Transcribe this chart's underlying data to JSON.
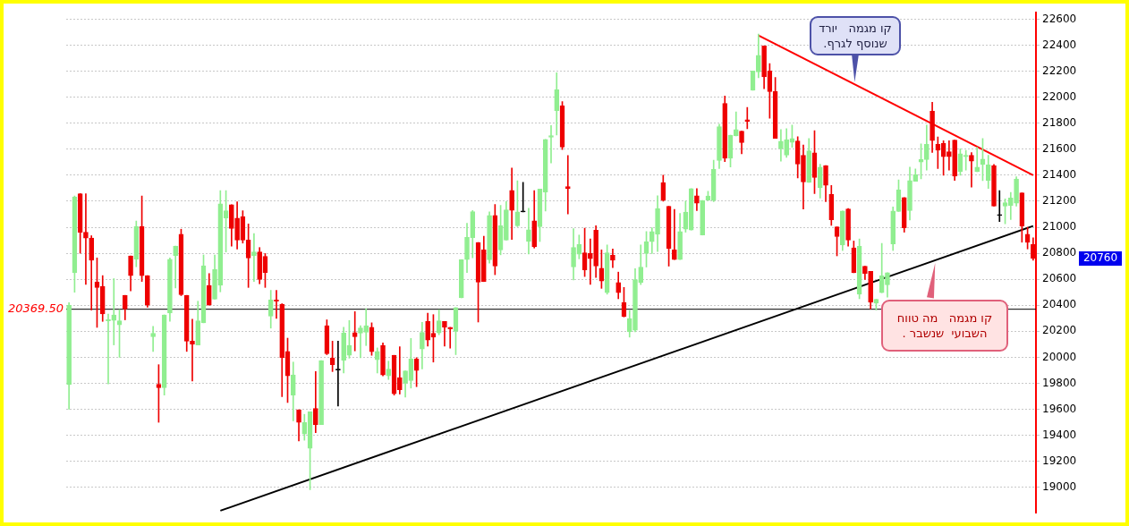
{
  "chart_data": {
    "type": "candlestick",
    "categories": [
      null,
      null,
      null,
      null,
      null,
      null,
      null,
      null,
      null,
      null,
      null,
      null,
      null,
      null,
      null,
      null,
      null,
      null,
      null,
      null,
      null,
      null,
      null,
      null,
      null,
      null,
      null,
      null,
      null,
      null,
      null,
      null,
      null,
      null,
      null,
      null,
      null,
      null,
      null,
      null,
      null,
      null,
      null,
      null,
      null,
      null,
      null,
      null,
      null,
      null,
      null,
      null,
      null,
      null,
      null,
      null,
      null,
      null,
      null,
      null,
      null,
      null,
      null,
      null,
      null,
      null,
      null,
      null,
      null,
      null,
      null,
      null,
      null,
      null,
      null,
      null,
      null,
      null,
      null,
      null,
      null,
      null,
      null,
      null,
      null,
      null,
      null,
      null,
      null,
      null,
      null,
      null,
      null,
      null,
      null,
      null,
      null,
      null,
      null,
      null,
      null,
      null,
      null,
      null,
      null,
      null,
      null,
      null,
      null,
      null,
      null,
      null,
      null,
      null,
      null,
      null,
      null,
      null,
      null,
      null,
      null,
      null,
      null,
      null,
      null,
      null,
      null,
      null,
      null,
      null,
      null,
      null,
      null,
      null,
      null,
      null,
      null,
      null,
      null,
      null,
      null,
      null,
      null,
      null,
      null,
      null,
      null,
      null,
      null,
      null,
      null,
      null,
      null,
      null,
      null,
      null,
      null,
      null,
      null,
      null,
      null,
      null,
      null,
      null,
      null,
      null,
      null,
      null,
      null,
      null,
      null,
      null,
      null
    ],
    "ohlc": [
      [
        19790,
        20420,
        19600,
        20400
      ],
      [
        20650,
        21240,
        20500,
        21234
      ],
      [
        21257,
        21260,
        20800,
        20962
      ],
      [
        20962,
        21257,
        20560,
        20917
      ],
      [
        20917,
        20935,
        20363,
        20746
      ],
      [
        20578,
        20764,
        20230,
        20537
      ],
      [
        20546,
        20628,
        20276,
        20333
      ],
      [
        20280,
        20333,
        19795,
        20290
      ],
      [
        20283,
        20605,
        20095,
        20326
      ],
      [
        20249,
        20367,
        20000,
        20280
      ],
      [
        20476,
        20476,
        20288,
        20372
      ],
      [
        20780,
        20780,
        20510,
        20628
      ],
      [
        20753,
        21048,
        20696,
        21007
      ],
      [
        21007,
        21241,
        20583,
        20628
      ],
      [
        20628,
        20628,
        20385,
        20401
      ],
      [
        20158,
        20238,
        20045,
        20185
      ],
      [
        19793,
        19943,
        19500,
        19766
      ],
      [
        19766,
        20326,
        19709,
        20326
      ],
      [
        20340,
        20764,
        20276,
        20753
      ],
      [
        20783,
        20855,
        20533,
        20855
      ],
      [
        20946,
        20985,
        20474,
        20481
      ],
      [
        20476,
        20476,
        20045,
        20124
      ],
      [
        20124,
        20292,
        19818,
        20102
      ],
      [
        20095,
        20431,
        20095,
        20281
      ],
      [
        20265,
        20787,
        20265,
        20703
      ],
      [
        20553,
        20644,
        20401,
        20401
      ],
      [
        20447,
        20787,
        20447,
        20674
      ],
      [
        20553,
        21282,
        20503,
        21180
      ],
      [
        21071,
        21282,
        20810,
        21127
      ],
      [
        21173,
        21173,
        20855,
        20991
      ],
      [
        21071,
        21196,
        20832,
        20901
      ],
      [
        21082,
        21127,
        20878,
        20901
      ],
      [
        20901,
        21025,
        20537,
        20764
      ],
      [
        20783,
        20951,
        20583,
        20810
      ],
      [
        20810,
        20844,
        20565,
        20599
      ],
      [
        20776,
        20798,
        20537,
        20651
      ],
      [
        20317,
        20515,
        20224,
        20440
      ],
      [
        20440,
        20515,
        20299,
        20431
      ],
      [
        20408,
        20412,
        19697,
        19997
      ],
      [
        20045,
        20147,
        19652,
        19857
      ],
      [
        19709,
        19963,
        19511,
        19864
      ],
      [
        19596,
        19596,
        19357,
        19500
      ],
      [
        19409,
        19561,
        19362,
        19498
      ],
      [
        19300,
        19580,
        18982,
        19580
      ],
      [
        19607,
        19890,
        19420,
        19482
      ],
      [
        19482,
        19975,
        19482,
        19975
      ],
      [
        20242,
        20288,
        20020,
        20027
      ],
      [
        19993,
        20124,
        19890,
        19943
      ],
      [
        19902,
        20124,
        19625,
        19902
      ],
      [
        19975,
        20231,
        19879,
        20186
      ],
      [
        20015,
        20283,
        19993,
        20092
      ],
      [
        20190,
        20351,
        20049,
        20158
      ],
      [
        20186,
        20242,
        19997,
        20226
      ],
      [
        20192,
        20374,
        20090,
        20242
      ],
      [
        20231,
        20265,
        20015,
        20043
      ],
      [
        19981,
        20072,
        19879,
        20045
      ],
      [
        20092,
        20111,
        19857,
        19863
      ],
      [
        19857,
        19970,
        19829,
        19909
      ],
      [
        20015,
        20015,
        19709,
        19720
      ],
      [
        19842,
        20081,
        19717,
        19751
      ],
      [
        19801,
        19895,
        19694,
        19895
      ],
      [
        19820,
        20145,
        19763,
        19986
      ],
      [
        19986,
        19997,
        19774,
        19899
      ],
      [
        20063,
        20269,
        19911,
        20191
      ],
      [
        20275,
        20339,
        20086,
        20132
      ],
      [
        20184,
        20328,
        19963,
        20154
      ],
      [
        20188,
        20366,
        20173,
        20280
      ],
      [
        20275,
        20275,
        20086,
        20230
      ],
      [
        20230,
        20230,
        20070,
        20218
      ],
      [
        20200,
        20382,
        20020,
        20382
      ],
      [
        20457,
        20751,
        20457,
        20751
      ],
      [
        20751,
        21031,
        20651,
        20922
      ],
      [
        20920,
        21129,
        20765,
        21120
      ],
      [
        20883,
        20883,
        20271,
        20578
      ],
      [
        20826,
        20931,
        20582,
        20582
      ],
      [
        20749,
        21118,
        20724,
        21091
      ],
      [
        21091,
        21175,
        20635,
        20701
      ],
      [
        20826,
        21168,
        20788,
        21011
      ],
      [
        20901,
        21198,
        20901,
        21134
      ],
      [
        21284,
        21455,
        20906,
        21129
      ],
      [
        21011,
        21357,
        21004,
        21118
      ],
      [
        21118,
        21346,
        21118,
        21118
      ],
      [
        20890,
        21145,
        20794,
        20981
      ],
      [
        21050,
        21282,
        20840,
        20849
      ],
      [
        21004,
        21293,
        20890,
        21293
      ],
      [
        21270,
        21676,
        21125,
        21676
      ],
      [
        21692,
        21783,
        21494,
        21704
      ],
      [
        21897,
        22189,
        21710,
        22057
      ],
      [
        21934,
        21966,
        21597,
        21617
      ],
      [
        21312,
        21551,
        21102,
        21296
      ],
      [
        20694,
        20990,
        20594,
        20844
      ],
      [
        20792,
        20940,
        20757,
        20867
      ],
      [
        20803,
        20992,
        20621,
        20673
      ],
      [
        20799,
        20910,
        20560,
        20758
      ],
      [
        20978,
        21012,
        20614,
        20701
      ],
      [
        20685,
        20826,
        20530,
        20587
      ],
      [
        20496,
        20864,
        20485,
        20803
      ],
      [
        20785,
        20833,
        20689,
        20746
      ],
      [
        20575,
        20655,
        20450,
        20496
      ],
      [
        20421,
        20537,
        20310,
        20314
      ],
      [
        20196,
        20360,
        20155,
        20298
      ],
      [
        20207,
        20682,
        20196,
        20598
      ],
      [
        20575,
        20864,
        20559,
        20694
      ],
      [
        20798,
        20967,
        20694,
        20889
      ],
      [
        20889,
        20996,
        20798,
        20967
      ],
      [
        20946,
        21242,
        20814,
        21144
      ],
      [
        21344,
        21401,
        21201,
        21208
      ],
      [
        21162,
        21162,
        20701,
        20837
      ],
      [
        20826,
        21137,
        20751,
        20751
      ],
      [
        20751,
        21106,
        20751,
        20967
      ],
      [
        20985,
        21201,
        20962,
        21117
      ],
      [
        20978,
        21297,
        20978,
        21297
      ],
      [
        21242,
        21297,
        21128,
        21185
      ],
      [
        20940,
        21206,
        20940,
        21206
      ],
      [
        21208,
        21276,
        21208,
        21240
      ],
      [
        21206,
        21515,
        21197,
        21445
      ],
      [
        21513,
        21793,
        21451,
        21774
      ],
      [
        21952,
        22009,
        21504,
        21531
      ],
      [
        21531,
        21708,
        21463,
        21708
      ],
      [
        21702,
        21888,
        21702,
        21752
      ],
      [
        21740,
        21740,
        21565,
        21651
      ],
      [
        21827,
        21922,
        21758,
        21815
      ],
      [
        22054,
        22202,
        22054,
        22202
      ],
      [
        22195,
        22486,
        22150,
        22323
      ],
      [
        22395,
        22395,
        22066,
        22157
      ],
      [
        22202,
        22259,
        21838,
        22043
      ],
      [
        22043,
        22152,
        21683,
        21683
      ],
      [
        21604,
        21752,
        21508,
        21661
      ],
      [
        21554,
        21758,
        21538,
        21674
      ],
      [
        21652,
        21786,
        21615,
        21683
      ],
      [
        21663,
        21697,
        21379,
        21485
      ],
      [
        21554,
        21633,
        21140,
        21349
      ],
      [
        21345,
        21683,
        21345,
        21588
      ],
      [
        21572,
        21743,
        21258,
        21383
      ],
      [
        21303,
        21485,
        21224,
        21463
      ],
      [
        21474,
        21474,
        21197,
        21322
      ],
      [
        21253,
        21322,
        21015,
        21058
      ],
      [
        21003,
        21003,
        20780,
        20928
      ],
      [
        20864,
        21126,
        20821,
        21126
      ],
      [
        21140,
        21144,
        20855,
        20901
      ],
      [
        20842,
        20894,
        20650,
        20650
      ],
      [
        20484,
        20910,
        20450,
        20853
      ],
      [
        20701,
        20701,
        20598,
        20644
      ],
      [
        20660,
        20660,
        20371,
        20423
      ],
      [
        20416,
        20446,
        20364,
        20446
      ],
      [
        20496,
        20876,
        20496,
        20626
      ],
      [
        20557,
        20651,
        20462,
        20651
      ],
      [
        20871,
        21156,
        20821,
        21126
      ],
      [
        21121,
        21365,
        21121,
        21287
      ],
      [
        21228,
        21228,
        20962,
        20996
      ],
      [
        21128,
        21463,
        21055,
        21359
      ],
      [
        21354,
        21449,
        21354,
        21404
      ],
      [
        21502,
        21642,
        21372,
        21520
      ],
      [
        21520,
        21785,
        21440,
        21637
      ],
      [
        21893,
        21961,
        21576,
        21667
      ],
      [
        21637,
        21694,
        21452,
        21592
      ],
      [
        21644,
        21665,
        21400,
        21542
      ],
      [
        21581,
        21665,
        21440,
        21542
      ],
      [
        21671,
        21671,
        21361,
        21393
      ],
      [
        21429,
        21603,
        21400,
        21565
      ],
      [
        21542,
        21592,
        21440,
        21554
      ],
      [
        21554,
        21574,
        21309,
        21508
      ],
      [
        21427,
        21615,
        21427,
        21463
      ],
      [
        21483,
        21683,
        21359,
        21524
      ],
      [
        21359,
        21554,
        21298,
        21479
      ],
      [
        21474,
        21483,
        21162,
        21162
      ],
      [
        21090,
        21282,
        21044,
        21090
      ],
      [
        21162,
        21218,
        21026,
        21189
      ],
      [
        21168,
        21268,
        21060,
        21225
      ],
      [
        21184,
        21388,
        21162,
        21372
      ],
      [
        21264,
        21264,
        20885,
        21010
      ],
      [
        20947,
        21000,
        20833,
        20883
      ],
      [
        20867,
        20919,
        20747,
        20760
      ]
    ],
    "colors": [
      "#90ee90",
      "#90ee90",
      "#ee0000",
      "#ee0000",
      "#ee0000",
      "#ee0000",
      "#ee0000",
      "#90ee90",
      "#90ee90",
      "#90ee90",
      "#ee0000",
      "#ee0000",
      "#90ee90",
      "#ee0000",
      "#ee0000",
      "#90ee90",
      "#ee0000",
      "#90ee90",
      "#90ee90",
      "#90ee90",
      "#ee0000",
      "#ee0000",
      "#ee0000",
      "#90ee90",
      "#90ee90",
      "#ee0000",
      "#90ee90",
      "#90ee90",
      "#90ee90",
      "#ee0000",
      "#ee0000",
      "#ee0000",
      "#ee0000",
      "#90ee90",
      "#ee0000",
      "#ee0000",
      "#90ee90",
      "#ee0000",
      "#ee0000",
      "#ee0000",
      "#90ee90",
      "#ee0000",
      "#90ee90",
      "#90ee90",
      "#ee0000",
      "#90ee90",
      "#ee0000",
      "#ee0000",
      "#000000",
      "#90ee90",
      "#90ee90",
      "#ee0000",
      "#90ee90",
      "#90ee90",
      "#ee0000",
      "#90ee90",
      "#ee0000",
      "#90ee90",
      "#ee0000",
      "#ee0000",
      "#90ee90",
      "#90ee90",
      "#ee0000",
      "#90ee90",
      "#ee0000",
      "#ee0000",
      "#90ee90",
      "#ee0000",
      "#ee0000",
      "#90ee90",
      "#90ee90",
      "#90ee90",
      "#90ee90",
      "#ee0000",
      "#ee0000",
      "#90ee90",
      "#ee0000",
      "#90ee90",
      "#90ee90",
      "#ee0000",
      "#90ee90",
      "#000000",
      "#90ee90",
      "#ee0000",
      "#90ee90",
      "#90ee90",
      "#90ee90",
      "#90ee90",
      "#ee0000",
      "#ee0000",
      "#90ee90",
      "#90ee90",
      "#ee0000",
      "#ee0000",
      "#ee0000",
      "#ee0000",
      "#90ee90",
      "#ee0000",
      "#ee0000",
      "#ee0000",
      "#90ee90",
      "#90ee90",
      "#90ee90",
      "#90ee90",
      "#90ee90",
      "#90ee90",
      "#ee0000",
      "#ee0000",
      "#ee0000",
      "#90ee90",
      "#90ee90",
      "#90ee90",
      "#ee0000",
      "#90ee90",
      "#90ee90",
      "#90ee90",
      "#90ee90",
      "#ee0000",
      "#90ee90",
      "#90ee90",
      "#ee0000",
      "#ee0000",
      "#90ee90",
      "#90ee90",
      "#ee0000",
      "#ee0000",
      "#ee0000",
      "#90ee90",
      "#90ee90",
      "#90ee90",
      "#ee0000",
      "#ee0000",
      "#90ee90",
      "#ee0000",
      "#90ee90",
      "#ee0000",
      "#ee0000",
      "#ee0000",
      "#90ee90",
      "#ee0000",
      "#ee0000",
      "#90ee90",
      "#ee0000",
      "#ee0000",
      "#90ee90",
      "#90ee90",
      "#90ee90",
      "#90ee90",
      "#90ee90",
      "#ee0000",
      "#90ee90",
      "#90ee90",
      "#90ee90",
      "#90ee90",
      "#ee0000",
      "#ee0000",
      "#ee0000",
      "#ee0000",
      "#ee0000",
      "#90ee90",
      "#90ee90",
      "#ee0000",
      "#90ee90",
      "#90ee90",
      "#90ee90",
      "#ee0000",
      "#000000",
      "#90ee90",
      "#90ee90",
      "#90ee90",
      "#ee0000",
      "#ee0000",
      "#ee0000"
    ],
    "series": [
      {
        "type": "line",
        "color": "#ff0000",
        "values": [
          null,
          null,
          null,
          null,
          null,
          null,
          null,
          null,
          null,
          null,
          null,
          null,
          null,
          null,
          null,
          null,
          null,
          null,
          null,
          null,
          null,
          null,
          null,
          null,
          null,
          null,
          null,
          null,
          null,
          null,
          null,
          null,
          null,
          null,
          null,
          null,
          null,
          null,
          null,
          null,
          null,
          null,
          null,
          null,
          null,
          null,
          null,
          null,
          null,
          null,
          null,
          null,
          null,
          null,
          null,
          null,
          null,
          null,
          null,
          null,
          null,
          null,
          null,
          null,
          null,
          null,
          null,
          null,
          null,
          null,
          null,
          null,
          null,
          null,
          null,
          null,
          null,
          null,
          null,
          null,
          null,
          null,
          null,
          null,
          null,
          null,
          null,
          null,
          null,
          null,
          null,
          null,
          null,
          null,
          null,
          null,
          null,
          null,
          null,
          null,
          null,
          null,
          null,
          null,
          null,
          null,
          null,
          null,
          null,
          null,
          null,
          null,
          null,
          null,
          null,
          null,
          null,
          null,
          null,
          null,
          null,
          null,
          null,
          22475,
          null,
          null,
          null,
          null,
          null,
          null,
          null,
          null,
          null,
          null,
          null,
          null,
          null,
          null,
          null,
          null,
          null,
          null,
          null,
          null,
          null,
          null,
          null,
          null,
          null,
          null,
          null,
          null,
          null,
          null,
          null,
          null,
          null,
          null,
          null,
          null,
          null,
          null,
          null,
          null,
          null,
          null,
          null,
          null,
          null,
          null,
          null,
          null,
          21400
        ]
      },
      {
        "type": "line",
        "color": "#000000",
        "values": [
          null,
          null,
          null,
          null,
          null,
          null,
          null,
          null,
          null,
          null,
          null,
          null,
          null,
          null,
          null,
          null,
          null,
          null,
          null,
          null,
          null,
          null,
          null,
          null,
          null,
          null,
          null,
          18820,
          null,
          null,
          null,
          null,
          null,
          null,
          null,
          null,
          null,
          null,
          null,
          null,
          null,
          null,
          null,
          null,
          null,
          null,
          null,
          null,
          null,
          null,
          null,
          null,
          null,
          null,
          null,
          null,
          null,
          null,
          null,
          null,
          null,
          null,
          null,
          null,
          null,
          null,
          null,
          null,
          null,
          null,
          null,
          null,
          null,
          null,
          null,
          null,
          null,
          null,
          null,
          null,
          null,
          null,
          null,
          null,
          null,
          null,
          null,
          null,
          null,
          null,
          null,
          null,
          null,
          null,
          null,
          null,
          null,
          null,
          null,
          null,
          null,
          null,
          null,
          null,
          null,
          null,
          null,
          null,
          null,
          null,
          null,
          null,
          null,
          null,
          null,
          null,
          null,
          null,
          null,
          null,
          null,
          null,
          null,
          null,
          null,
          null,
          null,
          null,
          null,
          null,
          null,
          null,
          null,
          null,
          null,
          null,
          null,
          null,
          null,
          null,
          null,
          null,
          null,
          null,
          null,
          null,
          null,
          null,
          null,
          null,
          null,
          null,
          null,
          null,
          null,
          null,
          null,
          null,
          null,
          null,
          null,
          null,
          null,
          null,
          null,
          null,
          null,
          null,
          null,
          null,
          null,
          null,
          21010
        ]
      }
    ],
    "ylim": [
      18800,
      22650
    ],
    "yticks": [
      19000,
      19200,
      19400,
      19600,
      19800,
      20000,
      20200,
      20400,
      20600,
      20800,
      21000,
      21200,
      21400,
      21600,
      21800,
      22000,
      22200,
      22400,
      22600
    ],
    "grid": "y",
    "tick_labels": "y",
    "ref_lines": [
      {
        "axis": "y",
        "value": 20369.5,
        "label": "20369.50",
        "color": "#000000"
      }
    ],
    "annotations": [
      "קו מגמה   יורד שנוסף לגרף.",
      "קו מגמה   מה טווח השבועי  שנשבר .",
      "20760"
    ]
  }
}
